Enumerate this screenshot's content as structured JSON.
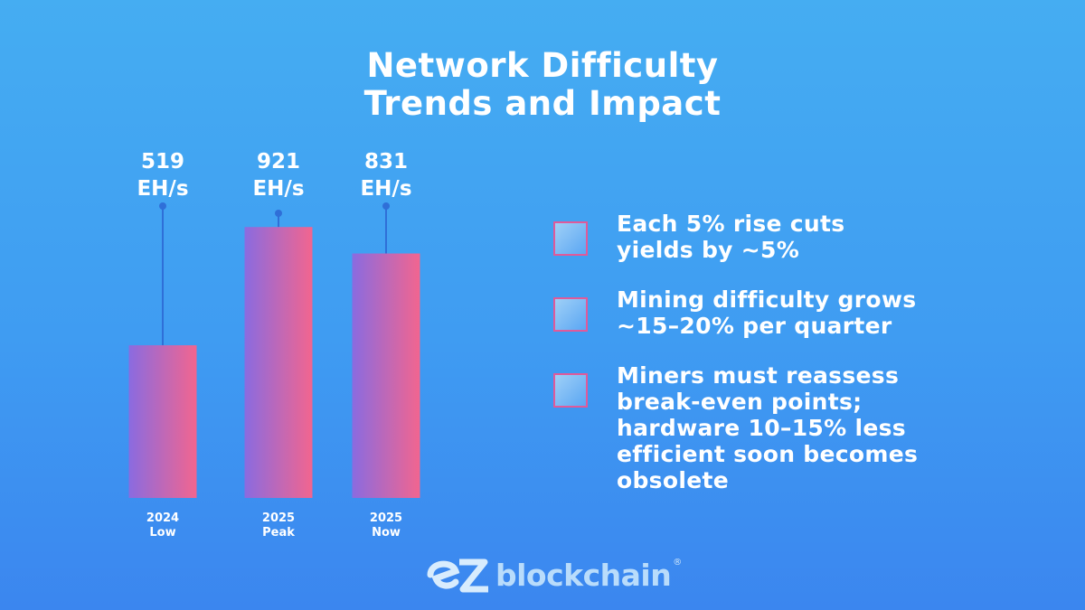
{
  "chart_data": {
    "type": "bar",
    "title": "Network Difficulty Trends and Impact",
    "categories": [
      "2024 Low",
      "2025 Peak",
      "2025 Now"
    ],
    "category_lines": [
      [
        "2024",
        "Low"
      ],
      [
        "2025",
        "Peak"
      ],
      [
        "2025",
        "Now"
      ]
    ],
    "values": [
      519,
      921,
      831
    ],
    "unit": "EH/s",
    "value_labels": [
      [
        "519",
        "EH/s"
      ],
      [
        "921",
        "EH/s"
      ],
      [
        "831",
        "EH/s"
      ]
    ],
    "bar_gradient": [
      "#8a6be0",
      "#f2658f"
    ],
    "stem_color": "#2f6fd8"
  },
  "title_lines": [
    "Network Difficulty",
    "Trends and Impact"
  ],
  "bullets": [
    [
      "Each 5% rise cuts",
      "yields by ~5%"
    ],
    [
      "Mining difficulty grows",
      "~15–20% per quarter"
    ],
    [
      "Miners must reassess",
      "break-even points;",
      "hardware 10–15% less",
      "efficient soon becomes",
      "obsolete"
    ]
  ],
  "logo": {
    "text": "blockchain",
    "mark": "ez",
    "registered": "®"
  }
}
